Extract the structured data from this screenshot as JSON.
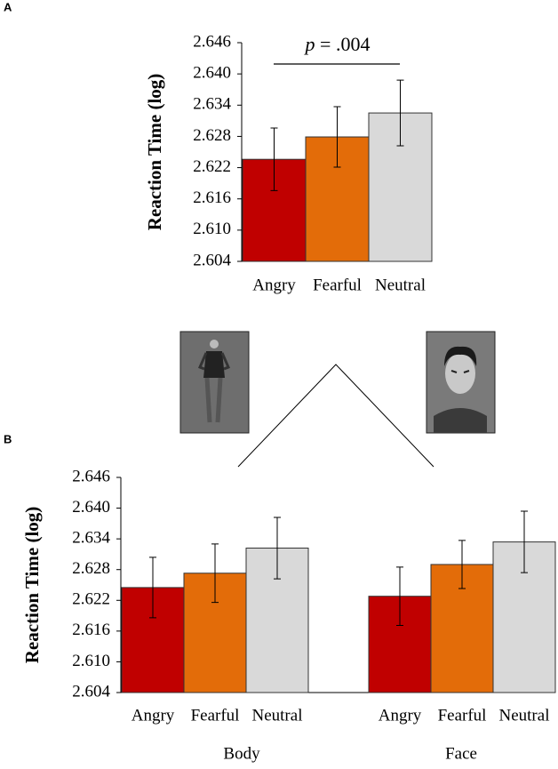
{
  "chart_data": [
    {
      "type": "bar",
      "panel": "A",
      "y_label": "Reaction Time (log)",
      "categories": [
        "Angry",
        "Fearful",
        "Neutral"
      ],
      "colors": [
        "#c00000",
        "#e36c09",
        "#d9d9d9"
      ],
      "values": [
        2.6236,
        2.6279,
        2.6325
      ],
      "errors": [
        0.006,
        0.0058,
        0.0063
      ],
      "ylim": [
        2.604,
        2.646
      ],
      "yticks": [
        2.604,
        {
          "value": 2.61,
          "label": "2.610"
        },
        2.616,
        2.622,
        2.628,
        2.634,
        {
          "value": 2.64,
          "label": "2.640"
        },
        2.646
      ],
      "annotation": {
        "italic": "p",
        "text": " = .004"
      }
    },
    {
      "type": "grouped_bar",
      "panel": "B",
      "y_label": "Reaction Time (log)",
      "categories": [
        "Angry",
        "Fearful",
        "Neutral"
      ],
      "colors": [
        "#c00000",
        "#e36c09",
        "#d9d9d9"
      ],
      "series": [
        {
          "name": "Body",
          "values": [
            2.6245,
            2.6273,
            2.6322
          ],
          "errors": [
            0.0059,
            0.0057,
            0.006
          ]
        },
        {
          "name": "Face",
          "values": [
            2.6228,
            2.629,
            2.6334
          ],
          "errors": [
            0.0057,
            0.0047,
            0.006
          ]
        }
      ],
      "ylim": [
        2.604,
        2.646
      ],
      "yticks": [
        2.604,
        {
          "value": 2.61,
          "label": "2.610"
        },
        2.616,
        2.622,
        2.628,
        2.634,
        {
          "value": 2.64,
          "label": "2.640"
        },
        2.646
      ]
    }
  ]
}
